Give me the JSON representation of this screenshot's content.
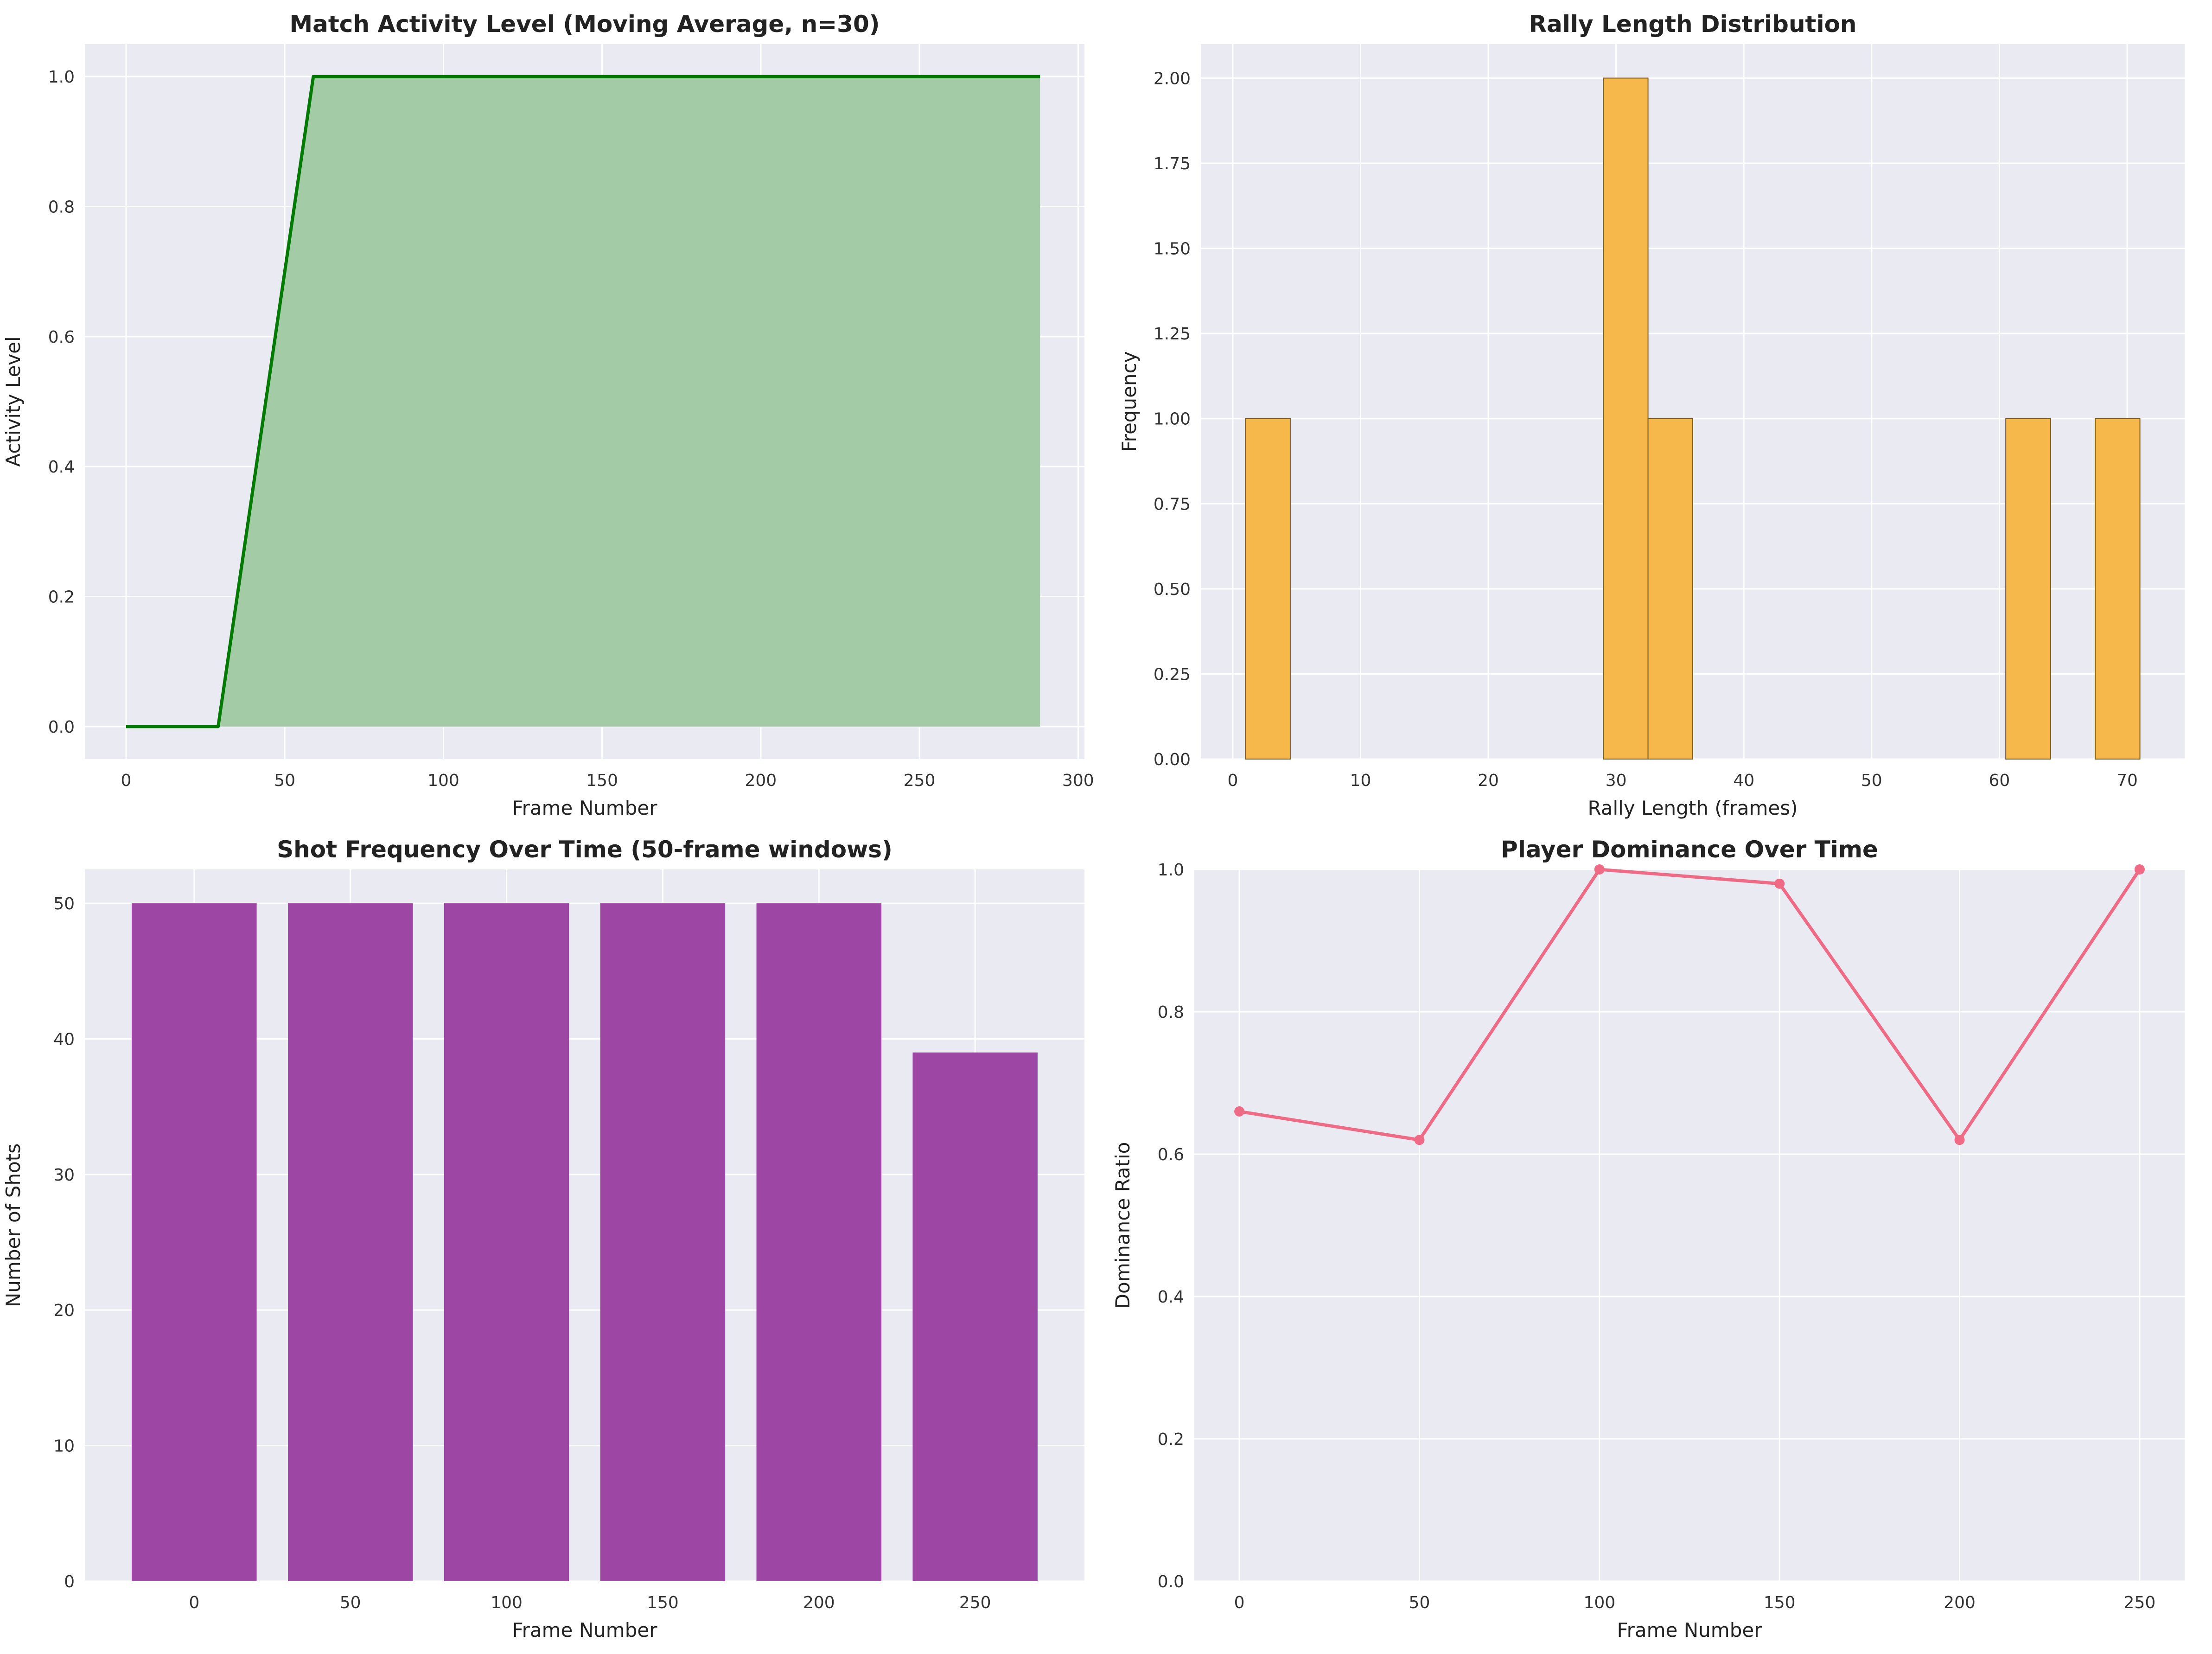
{
  "colors": {
    "axes_bg": "#EAEAF2",
    "grid": "#ffffff",
    "activity_line": "#007A00",
    "activity_fill": "#A3CBA5",
    "hist_bar": "#F7B84B",
    "hist_edge": "#7a5a1a",
    "shot_bar": "#9D46A3",
    "dominance_line": "#EE6A85"
  },
  "chart_data": [
    {
      "type": "area",
      "title": "Match Activity Level (Moving Average, n=30)",
      "xlabel": "Frame Number",
      "ylabel": "Activity Level",
      "xlim": [
        -13,
        302
      ],
      "ylim": [
        -0.05,
        1.05
      ],
      "xticks": [
        0,
        50,
        100,
        150,
        200,
        250,
        300
      ],
      "yticks": [
        0.0,
        0.2,
        0.4,
        0.6,
        0.8,
        1.0
      ],
      "ytick_decimals": 1,
      "x": [
        0,
        29,
        59,
        288
      ],
      "y": [
        0.0,
        0.0,
        1.0,
        1.0
      ],
      "fill_range": [
        29,
        288
      ],
      "grid": true
    },
    {
      "type": "bar",
      "subtype": "histogram",
      "title": "Rally Length Distribution",
      "xlabel": "Rally Length (frames)",
      "ylabel": "Frequency",
      "xlim": [
        -2.5,
        74.5
      ],
      "ylim": [
        0,
        2.1
      ],
      "xticks": [
        0,
        10,
        20,
        30,
        40,
        50,
        60,
        70
      ],
      "yticks": [
        0.0,
        0.25,
        0.5,
        0.75,
        1.0,
        1.25,
        1.5,
        1.75,
        2.0
      ],
      "ytick_decimals": 2,
      "bins": [
        {
          "start": 1,
          "end": 4.5,
          "count": 1
        },
        {
          "start": 29,
          "end": 32.5,
          "count": 2
        },
        {
          "start": 32.5,
          "end": 36,
          "count": 1
        },
        {
          "start": 60.5,
          "end": 64,
          "count": 1
        },
        {
          "start": 67.5,
          "end": 71,
          "count": 1
        }
      ],
      "grid": true
    },
    {
      "type": "bar",
      "title": "Shot Frequency Over Time (50-frame windows)",
      "xlabel": "Frame Number",
      "ylabel": "Number of Shots",
      "categories": [
        "0",
        "50",
        "100",
        "150",
        "200",
        "250"
      ],
      "values": [
        50,
        50,
        50,
        50,
        50,
        39
      ],
      "bar_width_fraction": 0.8,
      "ylim": [
        0,
        52.5
      ],
      "yticks": [
        0,
        10,
        20,
        30,
        40,
        50
      ],
      "ytick_decimals": 0,
      "grid": true
    },
    {
      "type": "line",
      "title": "Player Dominance Over Time",
      "xlabel": "Frame Number",
      "ylabel": "Dominance Ratio",
      "xlim": [
        -12.5,
        262.5
      ],
      "ylim": [
        0,
        1.0
      ],
      "xticks": [
        0,
        50,
        100,
        150,
        200,
        250
      ],
      "yticks": [
        0.0,
        0.2,
        0.4,
        0.6,
        0.8,
        1.0
      ],
      "ytick_decimals": 1,
      "x": [
        0,
        50,
        100,
        150,
        200,
        250
      ],
      "y": [
        0.66,
        0.62,
        1.0,
        0.98,
        0.62,
        1.0
      ],
      "markers": true,
      "grid": true
    }
  ]
}
